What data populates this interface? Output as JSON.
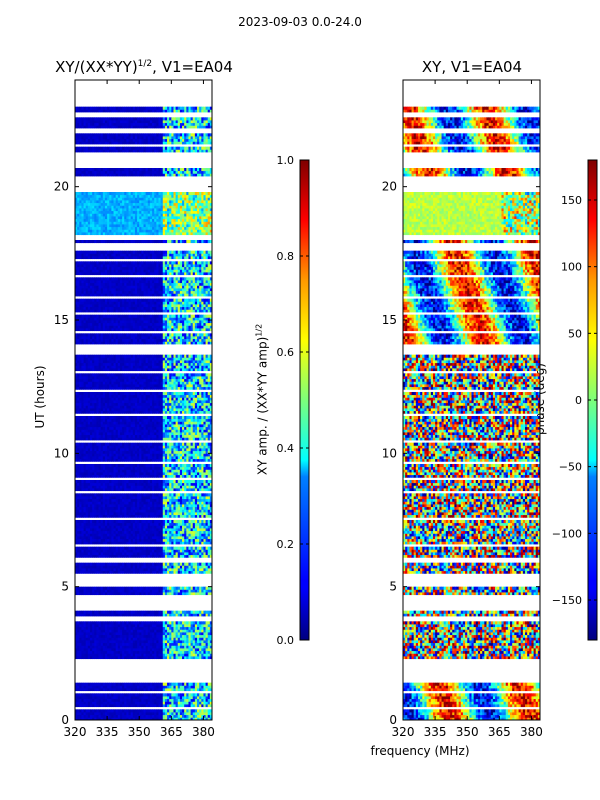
{
  "suptitle": "2023-09-03 0.0-24.0",
  "chart_data": [
    {
      "type": "heatmap",
      "title": "XY/(XX*YY)^1/2, V1=EA04",
      "title_main": "XY/(XX*YY)",
      "title_sup": "1/2",
      "title_tail": ", V1=EA04",
      "xlabel": "",
      "ylabel": "UT (hours)",
      "xlim": [
        320,
        384
      ],
      "ylim": [
        0,
        24
      ],
      "xticks": [
        "320",
        "335",
        "350",
        "365",
        "380"
      ],
      "xtick_values": [
        320,
        335,
        350,
        365,
        380
      ],
      "yticks": [
        "0",
        "5",
        "10",
        "15",
        "20"
      ],
      "ytick_values": [
        0,
        5,
        10,
        15,
        20
      ],
      "colorbar": {
        "label": "XY amp. / (XX*YY amp)^1/2",
        "label_main": "XY amp. / (XX*YY amp)",
        "label_sup": "1/2",
        "range": [
          0.0,
          1.0
        ],
        "ticks": [
          "0.0",
          "0.2",
          "0.4",
          "0.6",
          "0.8",
          "1.0"
        ],
        "tick_values": [
          0.0,
          0.2,
          0.4,
          0.6,
          0.8,
          1.0
        ]
      },
      "blank_ut_ranges": [
        [
          0.4,
          0.5
        ],
        [
          1.0,
          1.1
        ],
        [
          1.4,
          2.3
        ],
        [
          3.7,
          3.9
        ],
        [
          4.1,
          4.7
        ],
        [
          5.0,
          5.5
        ],
        [
          5.9,
          6.1
        ],
        [
          6.5,
          6.6
        ],
        [
          7.5,
          7.6
        ],
        [
          8.5,
          8.6
        ],
        [
          9.0,
          9.1
        ],
        [
          9.6,
          9.7
        ],
        [
          10.4,
          10.5
        ],
        [
          11.4,
          11.5
        ],
        [
          12.3,
          12.4
        ],
        [
          13.0,
          13.1
        ],
        [
          13.7,
          14.1
        ],
        [
          14.5,
          14.6
        ],
        [
          15.2,
          15.3
        ],
        [
          15.8,
          15.9
        ],
        [
          16.6,
          16.7
        ],
        [
          17.2,
          17.3
        ],
        [
          17.6,
          17.9
        ],
        [
          18.0,
          18.2
        ],
        [
          19.8,
          20.4
        ],
        [
          20.7,
          21.3
        ],
        [
          21.5,
          21.6
        ],
        [
          22.0,
          22.2
        ],
        [
          22.6,
          22.8
        ],
        [
          23.0,
          24.0
        ]
      ],
      "band_value_low": 0.05,
      "band_freq_range_mhz": [
        361,
        384
      ],
      "band_value_high": 0.5,
      "feature_ut_range": [
        18.2,
        19.8
      ],
      "feature_value": 0.3
    },
    {
      "type": "heatmap",
      "title": "XY, V1=EA04",
      "xlabel": "frequency (MHz)",
      "ylabel": "",
      "xlim": [
        320,
        384
      ],
      "ylim": [
        0,
        24
      ],
      "xticks": [
        "320",
        "335",
        "350",
        "365",
        "380"
      ],
      "xtick_values": [
        320,
        335,
        350,
        365,
        380
      ],
      "yticks": [
        "0",
        "5",
        "10",
        "15",
        "20"
      ],
      "ytick_values": [
        0,
        5,
        10,
        15,
        20
      ],
      "colorbar": {
        "label": "phase (deg)",
        "range": [
          -180,
          180
        ],
        "ticks": [
          "−150",
          "−100",
          "−50",
          "0",
          "50",
          "100",
          "150"
        ],
        "tick_values": [
          -150,
          -100,
          -50,
          0,
          50,
          100,
          150
        ]
      },
      "blank_ut_ranges": [
        [
          0.4,
          0.5
        ],
        [
          1.0,
          1.1
        ],
        [
          1.4,
          2.3
        ],
        [
          3.7,
          3.9
        ],
        [
          4.1,
          4.7
        ],
        [
          5.0,
          5.5
        ],
        [
          5.9,
          6.1
        ],
        [
          6.5,
          6.6
        ],
        [
          7.5,
          7.6
        ],
        [
          8.5,
          8.6
        ],
        [
          9.0,
          9.1
        ],
        [
          9.6,
          9.7
        ],
        [
          10.4,
          10.5
        ],
        [
          11.4,
          11.5
        ],
        [
          12.3,
          12.4
        ],
        [
          13.0,
          13.1
        ],
        [
          13.7,
          14.1
        ],
        [
          14.5,
          14.6
        ],
        [
          15.2,
          15.3
        ],
        [
          15.8,
          15.9
        ],
        [
          16.6,
          16.7
        ],
        [
          17.2,
          17.3
        ],
        [
          17.6,
          17.9
        ],
        [
          18.0,
          18.2
        ],
        [
          19.8,
          20.4
        ],
        [
          20.7,
          21.3
        ],
        [
          21.5,
          21.6
        ],
        [
          22.0,
          22.2
        ],
        [
          22.6,
          22.8
        ],
        [
          23.0,
          24.0
        ]
      ],
      "noisy_ut_range": [
        2.3,
        13.7
      ],
      "feature_ut_range": [
        18.2,
        19.8
      ],
      "feature_phase_deg": 20
    }
  ]
}
